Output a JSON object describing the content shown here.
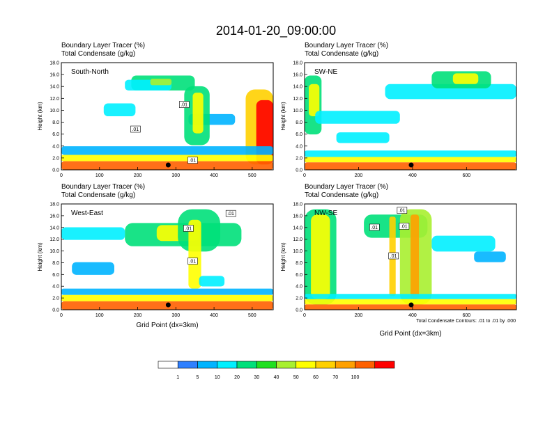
{
  "title": "2014-01-20_09:00:00",
  "colorbar": {
    "labels": [
      "1",
      "5",
      "10",
      "20",
      "30",
      "40",
      "50",
      "60",
      "70",
      "100"
    ],
    "colors": [
      "#ffffff",
      "#2f80ff",
      "#00b4ff",
      "#00f0ff",
      "#00e07a",
      "#20e020",
      "#a8f030",
      "#ffff00",
      "#ffd000",
      "#ffa000",
      "#ff6000",
      "#ff0000"
    ]
  },
  "panel_labels": {
    "tracer": "Boundary Layer Tracer   (%)",
    "condensate": "Total Condensate   (g/kg)",
    "ylabel": "Height (km)",
    "xlabel": "Grid Point (dx=3km)",
    "contour_note": "Total Condensate Contours: .01 to .01 by .000"
  },
  "chart_data": [
    {
      "type": "heatmap",
      "name": "South-North",
      "x_ticks": [
        "0",
        "100",
        "200",
        "300",
        "400",
        "500"
      ],
      "xlim": [
        0,
        555
      ],
      "y_ticks": [
        "0.0",
        "2.0",
        "4.0",
        "6.0",
        "8.0",
        "10.0",
        "12.0",
        "14.0",
        "16.0",
        "18.0"
      ],
      "ylim": [
        0,
        18
      ],
      "contour_labels": [
        ".01",
        ".01",
        ".01"
      ],
      "marker_x": 280
    },
    {
      "type": "heatmap",
      "name": "SW-NE",
      "x_ticks": [
        "0",
        "200",
        "400",
        "600"
      ],
      "xlim": [
        0,
        785
      ],
      "y_ticks": [
        "0.0",
        "2.0",
        "4.0",
        "6.0",
        "8.0",
        "10.0",
        "12.0",
        "14.0",
        "16.0",
        "18.0"
      ],
      "ylim": [
        0,
        18
      ],
      "contour_labels": [],
      "marker_x": 395
    },
    {
      "type": "heatmap",
      "name": "West-East",
      "x_ticks": [
        "0",
        "100",
        "200",
        "300",
        "400",
        "500"
      ],
      "xlim": [
        0,
        555
      ],
      "y_ticks": [
        "0.0",
        "2.0",
        "4.0",
        "6.0",
        "8.0",
        "10.0",
        "12.0",
        "14.0",
        "16.0",
        "18.0"
      ],
      "ylim": [
        0,
        18
      ],
      "contour_labels": [
        ".01",
        ".01",
        ".01"
      ],
      "marker_x": 280
    },
    {
      "type": "heatmap",
      "name": "NW-SE",
      "x_ticks": [
        "0",
        "200",
        "400",
        "600"
      ],
      "xlim": [
        0,
        785
      ],
      "y_ticks": [
        "0.0",
        "2.0",
        "4.0",
        "6.0",
        "8.0",
        "10.0",
        "12.0",
        "14.0",
        "16.0",
        "18.0"
      ],
      "ylim": [
        0,
        18
      ],
      "contour_labels": [
        ".01",
        ".01",
        ".01",
        ".01"
      ],
      "marker_x": 395
    }
  ]
}
